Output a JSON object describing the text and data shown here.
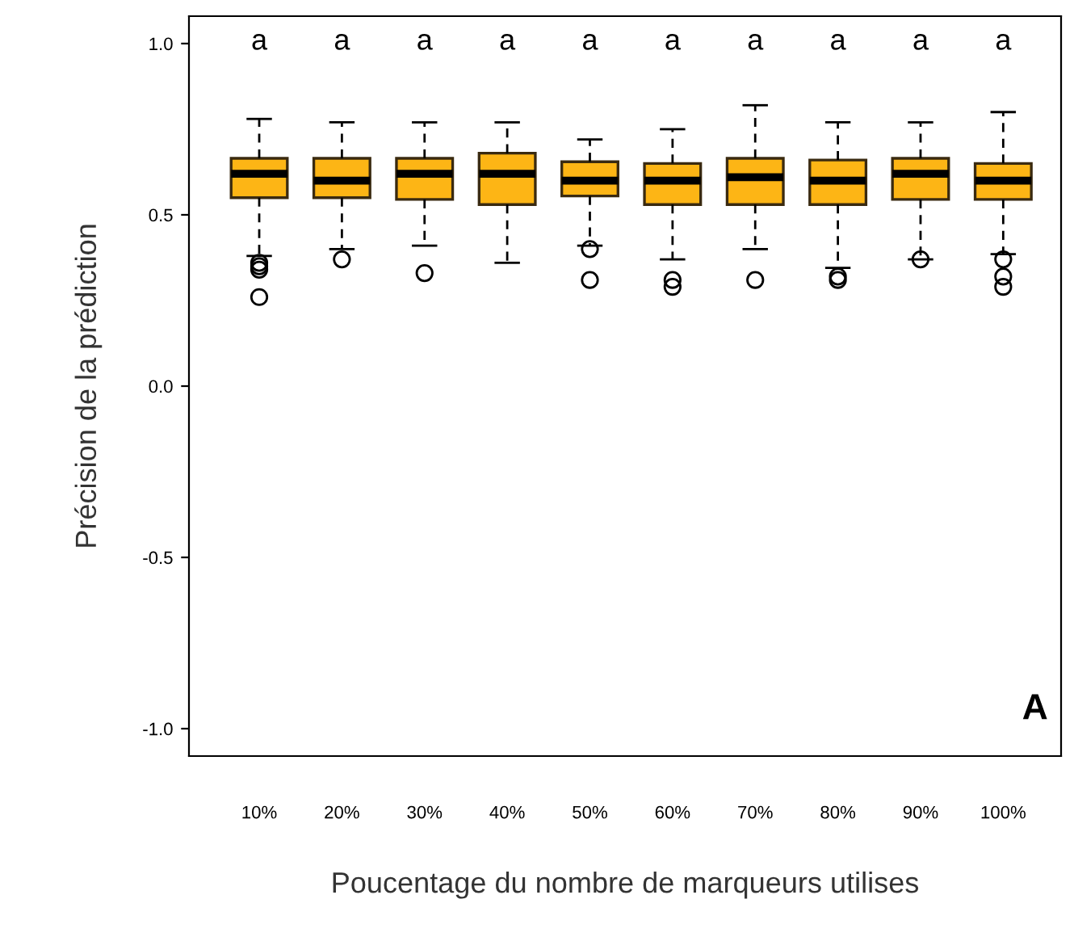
{
  "chart_data": {
    "type": "box",
    "xlabel": "Poucentage du nombre de marqueurs utilises",
    "ylabel": "Précision de la prédiction",
    "categories": [
      "10%",
      "20%",
      "30%",
      "40%",
      "50%",
      "60%",
      "70%",
      "80%",
      "90%",
      "100%"
    ],
    "color": "#fdb515",
    "boxes": [
      {
        "low": 0.38,
        "q1": 0.55,
        "median": 0.62,
        "q3": 0.665,
        "high": 0.78,
        "outliers": [
          0.36,
          0.35,
          0.34,
          0.26
        ]
      },
      {
        "low": 0.4,
        "q1": 0.55,
        "median": 0.6,
        "q3": 0.665,
        "high": 0.77,
        "outliers": [
          0.37
        ]
      },
      {
        "low": 0.41,
        "q1": 0.545,
        "median": 0.62,
        "q3": 0.665,
        "high": 0.77,
        "outliers": [
          0.33
        ]
      },
      {
        "low": 0.36,
        "q1": 0.53,
        "median": 0.62,
        "q3": 0.68,
        "high": 0.77
      },
      {
        "low": 0.41,
        "q1": 0.555,
        "median": 0.6,
        "q3": 0.655,
        "high": 0.72,
        "outliers": [
          0.4,
          0.31
        ]
      },
      {
        "low": 0.37,
        "q1": 0.53,
        "median": 0.6,
        "q3": 0.65,
        "high": 0.75,
        "outliers": [
          0.31,
          0.29
        ]
      },
      {
        "low": 0.4,
        "q1": 0.53,
        "median": 0.61,
        "q3": 0.665,
        "high": 0.82,
        "outliers": [
          0.31
        ]
      },
      {
        "low": 0.345,
        "q1": 0.53,
        "median": 0.6,
        "q3": 0.66,
        "high": 0.77,
        "outliers": [
          0.32,
          0.31
        ]
      },
      {
        "low": 0.37,
        "q1": 0.545,
        "median": 0.62,
        "q3": 0.665,
        "high": 0.77,
        "outliers": [
          0.37
        ]
      },
      {
        "low": 0.385,
        "q1": 0.545,
        "median": 0.6,
        "q3": 0.65,
        "high": 0.8,
        "outliers": [
          0.37,
          0.32,
          0.29
        ]
      }
    ],
    "ylim": [
      -1.08,
      1.08
    ],
    "yticks": [
      {
        "value": -1,
        "label": "-1.0"
      },
      {
        "value": -0.5,
        "label": "-0.5"
      },
      {
        "value": 0,
        "label": "0.0"
      },
      {
        "value": 0.5,
        "label": "0.5"
      },
      {
        "value": 1,
        "label": "1.0"
      }
    ],
    "grid": false,
    "annotations": [
      "a",
      "a",
      "a",
      "a",
      "a",
      "a",
      "a",
      "a",
      "a",
      "a",
      "A"
    ]
  }
}
